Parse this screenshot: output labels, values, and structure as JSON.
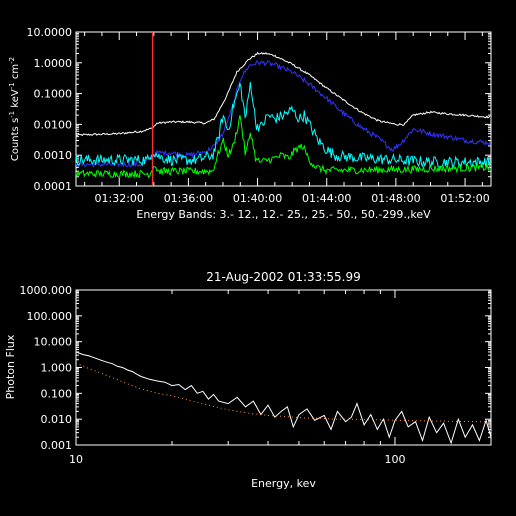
{
  "chart_data": [
    {
      "type": "line",
      "title": "",
      "ylabel_parts": [
        "Counts s",
        "-1",
        " keV",
        "-1",
        " cm",
        "-2"
      ],
      "xlabel": "Energy Bands:  3.- 12., 12.- 25., 25.- 50., 50.-299.,keV",
      "y_scale": "log",
      "ylim": [
        0.0001,
        10
      ],
      "y_ticks": [
        "0.0001",
        "0.0010",
        "0.0100",
        "0.1000",
        "1.0000",
        "10.0000"
      ],
      "x_unit": "minutes after 01:00",
      "xlim": [
        29.5,
        53.5
      ],
      "x_ticks": [
        {
          "value": 32,
          "label": "01:32:00"
        },
        {
          "value": 36,
          "label": "01:36:00"
        },
        {
          "value": 40,
          "label": "01:40:00"
        },
        {
          "value": 44,
          "label": "01:44:00"
        },
        {
          "value": 48,
          "label": "01:48:00"
        },
        {
          "value": 52,
          "label": "01:52:00"
        }
      ],
      "marker_line": {
        "x": 33.93,
        "color": "#ff3030"
      },
      "series": [
        {
          "band": "3.- 12.",
          "color": "#ffffff",
          "noise": 0.03,
          "x": [
            29.5,
            32.0,
            33.3,
            33.9,
            34.2,
            35.0,
            36.0,
            37.0,
            37.5,
            38.2,
            38.8,
            39.5,
            40.0,
            40.5,
            41.0,
            42.0,
            43.0,
            44.0,
            45.0,
            46.0,
            47.0,
            48.0,
            48.5,
            49.0,
            50.0,
            51.0,
            52.0,
            53.0,
            53.5
          ],
          "y": [
            0.0045,
            0.005,
            0.006,
            0.0075,
            0.011,
            0.012,
            0.012,
            0.011,
            0.015,
            0.08,
            0.5,
            1.3,
            2.0,
            2.0,
            1.7,
            0.9,
            0.4,
            0.15,
            0.06,
            0.025,
            0.013,
            0.01,
            0.01,
            0.02,
            0.025,
            0.022,
            0.02,
            0.018,
            0.017
          ]
        },
        {
          "band": "12.- 25.",
          "color": "#3333ff",
          "noise": 0.08,
          "x": [
            29.5,
            33.3,
            33.8,
            34.2,
            35.0,
            36.0,
            37.0,
            37.5,
            38.0,
            38.5,
            39.0,
            39.5,
            40.0,
            40.5,
            41.0,
            42.0,
            43.0,
            44.0,
            45.0,
            46.0,
            47.0,
            47.8,
            48.3,
            49.0,
            50.0,
            51.0,
            52.0,
            53.5
          ],
          "y": [
            0.0005,
            0.0005,
            0.0008,
            0.0012,
            0.0012,
            0.001,
            0.0013,
            0.002,
            0.005,
            0.03,
            0.3,
            0.8,
            1.0,
            1.0,
            0.85,
            0.5,
            0.2,
            0.07,
            0.022,
            0.008,
            0.0035,
            0.0015,
            0.0025,
            0.007,
            0.005,
            0.004,
            0.003,
            0.0025
          ]
        },
        {
          "band": "25.- 50.",
          "color": "#00ffff",
          "noise": 0.18,
          "x": [
            29.5,
            33.7,
            33.9,
            34.3,
            35.0,
            36.5,
            37.4,
            37.7,
            38.0,
            38.3,
            38.6,
            39.0,
            39.3,
            39.6,
            39.9,
            40.2,
            40.6,
            41.0,
            41.5,
            42.0,
            42.4,
            42.7,
            43.0,
            43.5,
            44.0,
            44.5,
            45.0,
            46.0,
            48.0,
            50.0,
            53.5
          ],
          "y": [
            0.0007,
            0.0007,
            0.0015,
            0.0009,
            0.0007,
            0.0007,
            0.001,
            0.003,
            0.02,
            0.006,
            0.04,
            0.2,
            0.015,
            0.25,
            0.01,
            0.008,
            0.02,
            0.015,
            0.02,
            0.03,
            0.015,
            0.02,
            0.01,
            0.003,
            0.0015,
            0.001,
            0.0009,
            0.0008,
            0.0007,
            0.0006,
            0.0006
          ]
        },
        {
          "band": "50.-299.",
          "color": "#00ff00",
          "noise": 0.12,
          "x": [
            29.5,
            33.8,
            34.0,
            34.3,
            35.0,
            37.4,
            37.7,
            38.0,
            38.3,
            38.6,
            39.0,
            39.3,
            39.6,
            39.9,
            40.2,
            40.6,
            41.0,
            41.4,
            41.8,
            42.2,
            42.6,
            43.0,
            43.4,
            44.0,
            48.0,
            53.5
          ],
          "y": [
            0.00025,
            0.00025,
            0.0005,
            0.0003,
            0.0003,
            0.0003,
            0.001,
            0.003,
            0.001,
            0.002,
            0.02,
            0.001,
            0.006,
            0.0007,
            0.0006,
            0.0007,
            0.0008,
            0.001,
            0.0008,
            0.0015,
            0.002,
            0.0007,
            0.0004,
            0.00032,
            0.00034,
            0.0004
          ]
        }
      ]
    },
    {
      "type": "line",
      "title": "21-Aug-2002 01:33:55.99",
      "xlabel": "Energy, kev",
      "ylabel": "Photon Flux",
      "x_scale": "log",
      "y_scale": "log",
      "xlim": [
        10,
        200
      ],
      "ylim": [
        0.001,
        1000
      ],
      "x_ticks": [
        {
          "value": 10,
          "label": "10"
        },
        {
          "value": 100,
          "label": "100"
        }
      ],
      "y_ticks": [
        "0.001",
        "0.010",
        "0.100",
        "1.000",
        "10.000",
        "100.000",
        "1000.000"
      ],
      "series": [
        {
          "style": "solid",
          "color": "#ffffff",
          "x": [
            10,
            10.5,
            11,
            11.5,
            12,
            12.5,
            13,
            13.5,
            14,
            14.5,
            15,
            15.5,
            16,
            17,
            18,
            19,
            20,
            21,
            22,
            23,
            24,
            25,
            26,
            27,
            28,
            30,
            32,
            34,
            36,
            38,
            40,
            42,
            44,
            46,
            48,
            50,
            53,
            56,
            60,
            63,
            66,
            70,
            73,
            76,
            80,
            84,
            88,
            92,
            96,
            100,
            105,
            110,
            116,
            122,
            128,
            135,
            142,
            150,
            158,
            166,
            175,
            184,
            193,
            200
          ],
          "y": [
            4.0,
            3.2,
            2.8,
            2.3,
            1.9,
            1.6,
            1.4,
            1.1,
            1.0,
            0.8,
            0.7,
            0.55,
            0.45,
            0.35,
            0.3,
            0.27,
            0.2,
            0.22,
            0.14,
            0.2,
            0.1,
            0.12,
            0.06,
            0.09,
            0.05,
            0.04,
            0.07,
            0.03,
            0.05,
            0.015,
            0.035,
            0.012,
            0.02,
            0.03,
            0.005,
            0.015,
            0.025,
            0.009,
            0.014,
            0.004,
            0.02,
            0.008,
            0.012,
            0.04,
            0.006,
            0.015,
            0.004,
            0.01,
            0.002,
            0.009,
            0.02,
            0.005,
            0.008,
            0.0015,
            0.012,
            0.003,
            0.007,
            0.0012,
            0.01,
            0.002,
            0.006,
            0.0015,
            0.009,
            0.002
          ]
        },
        {
          "style": "dotted",
          "color": "#ff9040",
          "x": [
            10,
            11,
            12,
            13,
            14,
            15,
            16,
            18,
            20,
            22,
            24,
            26,
            28,
            30,
            33,
            36,
            40,
            44,
            48,
            53,
            58,
            64,
            70,
            77,
            85,
            94,
            103,
            113,
            125,
            137,
            150,
            165,
            180,
            200
          ],
          "y": [
            1.5,
            0.9,
            0.6,
            0.4,
            0.28,
            0.2,
            0.15,
            0.1,
            0.08,
            0.06,
            0.045,
            0.035,
            0.028,
            0.023,
            0.019,
            0.016,
            0.014,
            0.013,
            0.012,
            0.011,
            0.011,
            0.01,
            0.01,
            0.0098,
            0.0095,
            0.0093,
            0.009,
            0.0088,
            0.0086,
            0.0085,
            0.0083,
            0.0082,
            0.008,
            0.008
          ]
        }
      ]
    }
  ]
}
